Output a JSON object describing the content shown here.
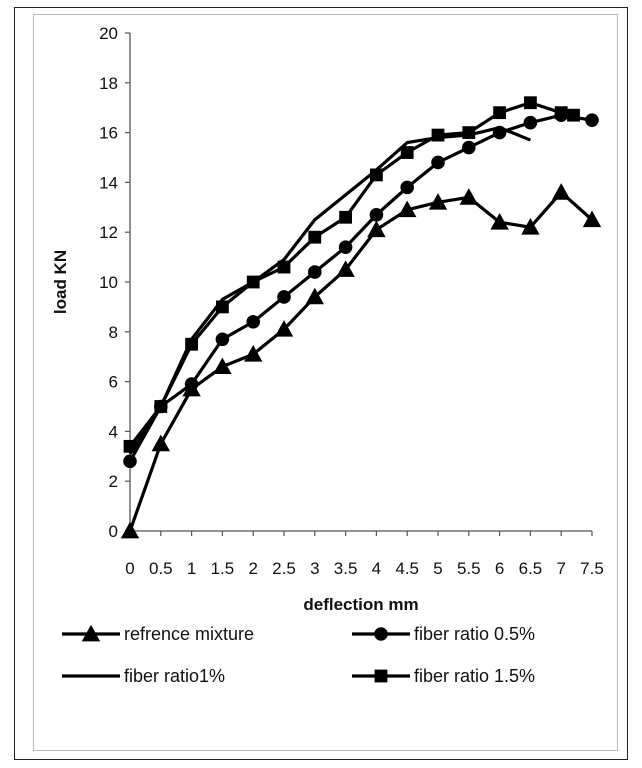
{
  "chart_data": {
    "type": "line",
    "xlabel": "deflection mm",
    "ylabel": "load KN",
    "xlim": [
      0,
      7.5
    ],
    "ylim": [
      0,
      20
    ],
    "x_ticks": [
      "0",
      "0.5",
      "1",
      "1.5",
      "2",
      "2.5",
      "3",
      "3.5",
      "4",
      "4.5",
      "5",
      "5.5",
      "6",
      "6.5",
      "7",
      "7.5"
    ],
    "y_ticks": [
      "0",
      "2",
      "4",
      "6",
      "8",
      "10",
      "12",
      "14",
      "16",
      "18",
      "20"
    ],
    "grid": false,
    "legend_position": "bottom",
    "series": [
      {
        "name": "refrence mixture",
        "marker": "triangle",
        "color": "#000000",
        "x": [
          0,
          0.5,
          1,
          1.5,
          2,
          2.5,
          3,
          3.5,
          4,
          4.5,
          5,
          5.5,
          6,
          6.5,
          7,
          7.5
        ],
        "y": [
          0,
          3.5,
          5.7,
          6.6,
          7.1,
          8.1,
          9.4,
          10.5,
          12.1,
          12.9,
          13.2,
          13.4,
          12.4,
          12.2,
          13.6,
          12.5
        ]
      },
      {
        "name": "fiber ratio 0.5%",
        "marker": "circle",
        "color": "#000000",
        "x": [
          0,
          0.5,
          1,
          1.5,
          2,
          2.5,
          3,
          3.5,
          4,
          4.5,
          5,
          5.5,
          6,
          6.5,
          7,
          7.5
        ],
        "y": [
          2.8,
          5.0,
          5.9,
          7.7,
          8.4,
          9.4,
          10.4,
          11.4,
          12.7,
          13.8,
          14.8,
          15.4,
          16.0,
          16.4,
          16.7,
          16.5
        ]
      },
      {
        "name": "fiber ratio1%",
        "marker": "none",
        "color": "#000000",
        "x": [
          0,
          0.5,
          1,
          1.5,
          2,
          2.5,
          3,
          3.5,
          4,
          4.5,
          5,
          5.5,
          6,
          6.5
        ],
        "y": [
          3.1,
          5.0,
          7.7,
          9.3,
          10.0,
          10.9,
          12.5,
          13.5,
          14.5,
          15.6,
          15.8,
          15.9,
          16.2,
          15.7
        ]
      },
      {
        "name": "fiber ratio 1.5%",
        "marker": "square",
        "color": "#000000",
        "x": [
          0,
          0.5,
          1,
          1.5,
          2,
          2.5,
          3,
          3.5,
          4,
          4.5,
          5,
          5.5,
          6,
          6.5,
          7,
          7.2
        ],
        "y": [
          3.4,
          5.0,
          7.5,
          9.0,
          10.0,
          10.6,
          11.8,
          12.6,
          14.3,
          15.2,
          15.9,
          16.0,
          16.8,
          17.2,
          16.8,
          16.7
        ]
      }
    ]
  }
}
